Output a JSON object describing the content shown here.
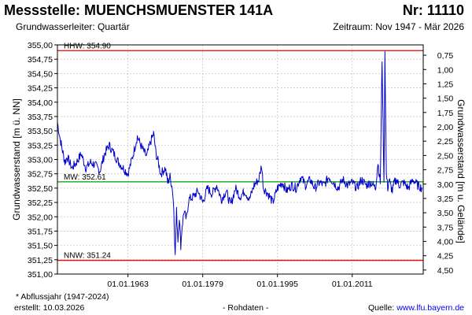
{
  "header": {
    "title": "Messstelle: MUENCHSMUENSTER 141A",
    "number": "Nr: 11110",
    "aquifer": "Grundwasserleiter: Quartär",
    "period": "Zeitraum: Nov 1947 - Mär 2026"
  },
  "footer": {
    "note": "* Abflussjahr (1947-2024)",
    "created_label": "erstellt:",
    "created_date": "10.03.2026",
    "raw": "- Rohdaten -",
    "source_label": "Quelle:",
    "source_link": "www.lfu.bayern.de"
  },
  "colors": {
    "series": "#0000cc",
    "extreme_lines": "#ee0000",
    "mean_line": "#009900",
    "grid": "#c8c8c8"
  },
  "chart_data": {
    "type": "line",
    "ylabel": "Grundwasserstand [m ü. NN]",
    "ylabel_right": "Grundwasserstand [m u. Gelände]",
    "ylim": [
      351.0,
      355.0
    ],
    "y_ticks": [
      "355,00",
      "354,75",
      "354,50",
      "354,25",
      "354,00",
      "353,75",
      "353,50",
      "353,25",
      "353,00",
      "352,75",
      "352,50",
      "352,25",
      "352,00",
      "351,75",
      "351,50",
      "351,25",
      "351,00"
    ],
    "y_ticks_right": [
      "0,75",
      "1,00",
      "1,25",
      "1,50",
      "1,75",
      "2,00",
      "2,25",
      "2,50",
      "2,75",
      "3,00",
      "3,25",
      "3,50",
      "3,75",
      "4,00",
      "4,25",
      "4,50"
    ],
    "xlim": [
      1947.9,
      2026.2
    ],
    "x_ticks": [
      {
        "value": 1963.0,
        "label": "01.01.1963"
      },
      {
        "value": 1979.0,
        "label": "01.01.1979"
      },
      {
        "value": 1995.0,
        "label": "01.01.1995"
      },
      {
        "value": 2011.0,
        "label": "01.01.2011"
      }
    ],
    "reference_lines": [
      {
        "name": "HHW",
        "label": "HHW: 354.90",
        "value": 354.9,
        "color": "#ee0000"
      },
      {
        "name": "MW",
        "label": "MW: 352.61",
        "value": 352.61,
        "color": "#009900"
      },
      {
        "name": "NNW",
        "label": "NNW: 351.24",
        "value": 351.24,
        "color": "#ee0000"
      }
    ],
    "series": [
      {
        "x": [
          1947.9,
          1948.5,
          1949.0,
          1949.5,
          1950.0,
          1951.0,
          1952.0,
          1953.0,
          1954.0,
          1955.0,
          1956.0,
          1957.0,
          1958.0,
          1959.0,
          1960.0,
          1961.0,
          1962.0,
          1963.0,
          1964.0,
          1965.0,
          1966.0,
          1967.0,
          1967.8,
          1968.5,
          1969.0,
          1969.5,
          1970.0,
          1971.0,
          1971.5,
          1972.0,
          1972.5,
          1972.8,
          1973.1,
          1973.4,
          1973.7,
          1974.0,
          1974.3,
          1974.6,
          1975.0,
          1975.5,
          1976.0,
          1977.0,
          1978.0,
          1979.0,
          1980.0,
          1981.0,
          1982.0,
          1983.0,
          1984.0,
          1985.0,
          1986.0,
          1987.0,
          1988.0,
          1989.0,
          1990.0,
          1991.0,
          1991.6,
          1992.0,
          1993.0,
          1994.0,
          1995.0,
          1996.0,
          1997.0,
          1998.0,
          1999.0,
          2000.0,
          2001.0,
          2002.0,
          2003.0,
          2004.0,
          2005.0,
          2006.0,
          2007.0,
          2008.0,
          2009.0,
          2010.0,
          2011.0,
          2012.0,
          2013.0,
          2014.0,
          2015.0,
          2016.0,
          2016.5,
          2017.0,
          2017.4,
          2017.8,
          2018.0,
          2018.3,
          2018.6,
          2018.9,
          2019.2,
          2019.6,
          2020.0,
          2020.5,
          2021.0,
          2022.0,
          2023.0,
          2024.0,
          2025.0,
          2026.0
        ],
        "y": [
          353.65,
          353.35,
          353.15,
          352.95,
          353.05,
          352.85,
          352.95,
          353.1,
          352.85,
          352.95,
          352.9,
          352.8,
          353.1,
          353.25,
          353.1,
          352.95,
          352.85,
          352.75,
          353.05,
          353.4,
          353.2,
          353.05,
          353.3,
          353.45,
          353.1,
          352.95,
          352.75,
          352.85,
          352.6,
          352.7,
          352.5,
          352.15,
          351.3,
          352.1,
          351.6,
          352.0,
          351.5,
          351.85,
          352.1,
          351.95,
          352.3,
          352.35,
          352.45,
          352.25,
          352.5,
          352.4,
          352.55,
          352.3,
          352.45,
          352.2,
          352.5,
          352.35,
          352.45,
          352.3,
          352.55,
          352.65,
          352.9,
          352.5,
          352.4,
          352.25,
          352.5,
          352.6,
          352.45,
          352.55,
          352.5,
          352.7,
          352.55,
          352.65,
          352.5,
          352.6,
          352.55,
          352.7,
          352.6,
          352.5,
          352.65,
          352.55,
          352.6,
          352.5,
          352.65,
          352.55,
          352.6,
          352.5,
          352.95,
          352.6,
          354.75,
          352.55,
          354.9,
          352.75,
          352.5,
          352.65,
          352.55,
          352.45,
          352.6,
          352.65,
          352.55,
          352.6,
          352.5,
          352.65,
          352.55,
          352.5
        ]
      }
    ]
  }
}
